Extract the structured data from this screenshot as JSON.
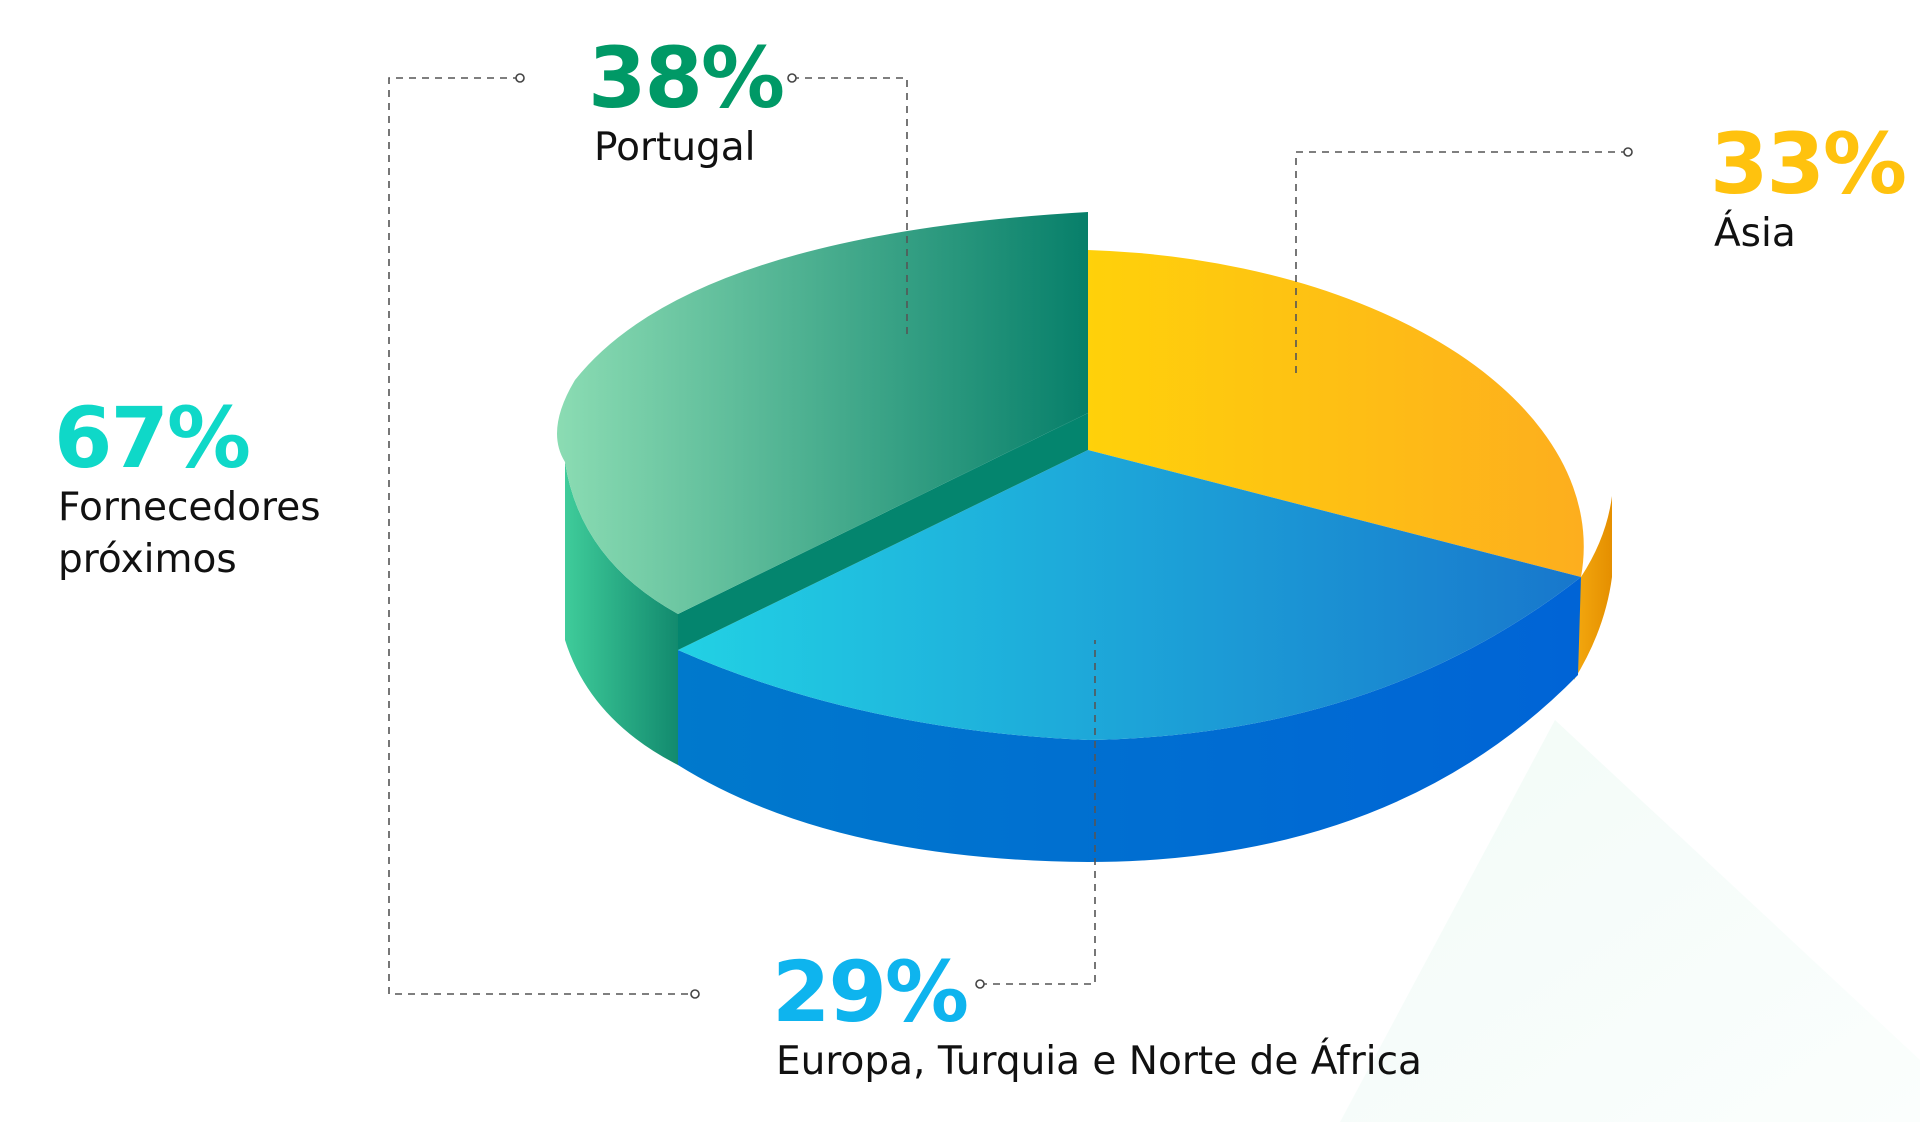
{
  "chart_data": {
    "type": "pie",
    "style": "3d",
    "slices": [
      {
        "label": "Ásia",
        "percent": "33%",
        "value": 33,
        "color": "#FFC20E"
      },
      {
        "label": "Europa, Turquia e Norte de África",
        "percent": "29%",
        "value": 29,
        "color": "#0EB4EE"
      },
      {
        "label": "Portugal",
        "percent": "38%",
        "value": 38,
        "color": "#009966"
      }
    ],
    "group": {
      "label_lines": [
        "Fornecedores",
        "próximos"
      ],
      "percent": "67%",
      "value": 67,
      "color": "#0FD8C8",
      "members": [
        "Europa, Turquia e Norte de África",
        "Portugal"
      ]
    }
  }
}
